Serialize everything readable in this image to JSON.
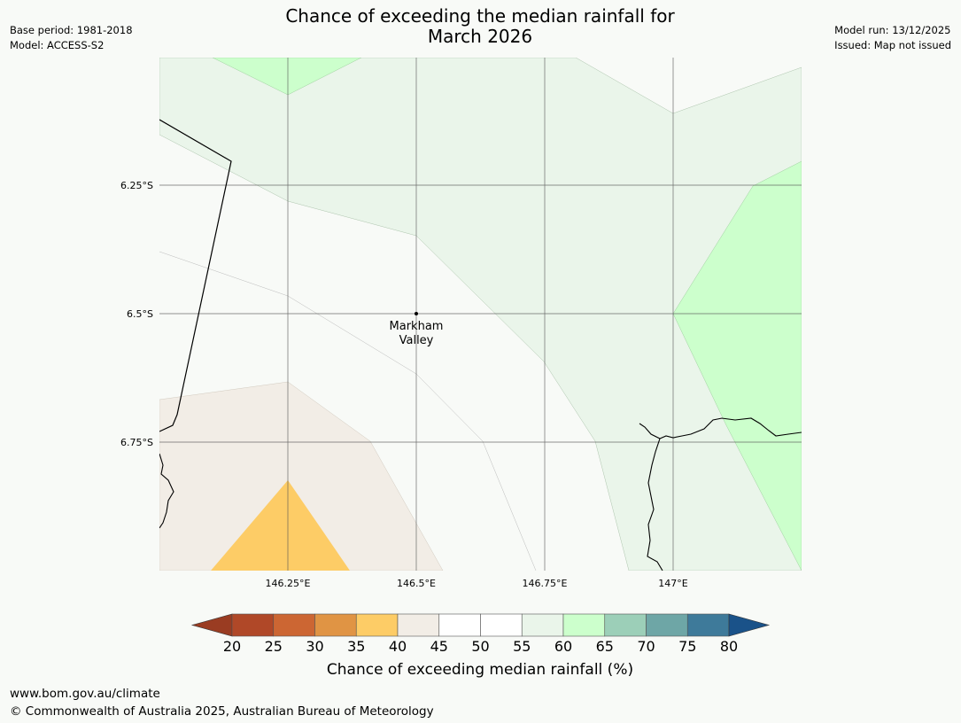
{
  "header": {
    "title_line1": "Chance of exceeding the median rainfall for",
    "title_line2": "March 2026",
    "base_period": "Base period: 1981-2018",
    "model": "Model: ACCESS-S2",
    "model_run": "Model run: 13/12/2025",
    "issued": "Issued: Map not issued"
  },
  "map": {
    "latitude_labels": [
      "6.25°S",
      "6.5°S",
      "6.75°S"
    ],
    "longitude_labels": [
      "146.25°E",
      "146.5°E",
      "146.75°E",
      "147°E"
    ],
    "location": {
      "name_line1": "Markham",
      "name_line2": "Valley"
    },
    "colors": {
      "land_background": "#f8faf7",
      "band_35_40": "#fdcc66",
      "band_40_45": "#f2ede6",
      "band_55_60": "#eaf5ea",
      "band_60_65": "#ccffcc",
      "grid": "#555555"
    }
  },
  "colorbar": {
    "label": "Chance of exceeding median rainfall (%)",
    "ticks": [
      "20",
      "25",
      "30",
      "35",
      "40",
      "45",
      "50",
      "55",
      "60",
      "65",
      "70",
      "75",
      "80"
    ],
    "colors": [
      "#b04828",
      "#cc6633",
      "#e09444",
      "#fdcc66",
      "#f2ede6",
      "#ffffff",
      "#ffffff",
      "#eaf5ea",
      "#ccffcc",
      "#9ccfb8",
      "#6ea6a6",
      "#3e7a9a"
    ],
    "under_color": "#9a3c22",
    "over_color": "#1a5289"
  },
  "footer": {
    "url": "www.bom.gov.au/climate",
    "copyright": "© Commonwealth of Australia 2025, Australian Bureau of Meteorology"
  }
}
